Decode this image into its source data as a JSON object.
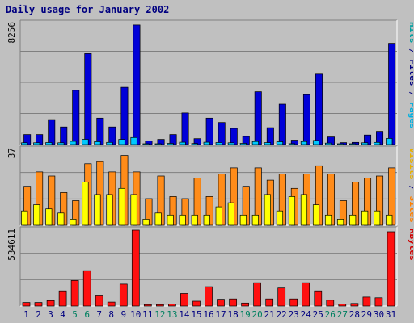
{
  "chart_data": {
    "type": "bar",
    "title": "Daily usage for January 2002",
    "colors": {
      "background": "#c0c0c0",
      "plot_background": "#c0c0c0",
      "title": "#000080",
      "hits": "#00a0a0",
      "hits_bar": "#00a0f0",
      "files": "#000080",
      "files_bar": "#0000d8",
      "pages": "#00b0e0",
      "pages_bar": "#00c8ff",
      "visits": "#e8b000",
      "visits_bar": "#ffff00",
      "sites": "#ff8000",
      "sites_bar": "#ff8c1a",
      "kbytes": "#d00000",
      "kbytes_bar": "#ff1010",
      "weekend_day": "#008060",
      "weekday": "#000080"
    },
    "days": [
      "1",
      "2",
      "3",
      "4",
      "5",
      "6",
      "7",
      "8",
      "9",
      "10",
      "11",
      "12",
      "13",
      "14",
      "15",
      "16",
      "17",
      "18",
      "19",
      "20",
      "21",
      "22",
      "23",
      "24",
      "25",
      "26",
      "27",
      "28",
      "29",
      "30",
      "31"
    ],
    "weekend_days": [
      "5",
      "6",
      "12",
      "13",
      "19",
      "20",
      "26",
      "27"
    ],
    "panels": [
      {
        "name": "files-pages-hits",
        "ymax_label": "8256",
        "ymax": 8256,
        "legend": [
          {
            "text": "Pages",
            "color": "#00b0e0"
          },
          {
            "text": " / ",
            "color": "#000080"
          },
          {
            "text": "Files",
            "color": "#000080"
          },
          {
            "text": " / ",
            "color": "#000080"
          },
          {
            "text": "Hits",
            "color": "#00a0a0"
          }
        ],
        "series": [
          {
            "name": "Files",
            "color": "#0000d8",
            "values": [
              680,
              680,
              1700,
              1200,
              3700,
              6200,
              1800,
              1200,
              3900,
              8150,
              250,
              350,
              680,
              2150,
              400,
              1800,
              1500,
              1100,
              550,
              3600,
              1150,
              2750,
              300,
              3400,
              4800,
              520,
              130,
              150,
              650,
              900,
              6900
            ]
          },
          {
            "name": "Pages",
            "color": "#00c8ff",
            "values": [
              120,
              120,
              140,
              120,
              220,
              360,
              200,
              150,
              350,
              480,
              40,
              50,
              80,
              160,
              70,
              160,
              140,
              120,
              80,
              210,
              130,
              190,
              60,
              210,
              280,
              100,
              30,
              30,
              120,
              150,
              420
            ]
          }
        ]
      },
      {
        "name": "visits-sites",
        "ymax_label": "37",
        "ymax": 37,
        "legend": [
          {
            "text": "Sites",
            "color": "#ff8000"
          },
          {
            "text": " / ",
            "color": "#000080"
          },
          {
            "text": "Visits",
            "color": "#e8b000"
          }
        ],
        "series": [
          {
            "name": "Sites",
            "color": "#ff8c1a",
            "values": [
              19,
              26,
              24,
              16,
              12,
              30,
              31,
              26,
              34,
              26,
              13,
              24,
              14,
              13,
              23,
              14,
              25,
              28,
              19,
              28,
              22,
              25,
              18,
              25,
              29,
              25,
              12,
              21,
              23,
              24,
              28
            ]
          },
          {
            "name": "Visits",
            "color": "#ffff00",
            "values": [
              7,
              10,
              8,
              6,
              3,
              21,
              15,
              15,
              18,
              15,
              3,
              6,
              5,
              5,
              5,
              5,
              9,
              11,
              5,
              5,
              15,
              7,
              14,
              15,
              10,
              5,
              3,
              5,
              7,
              7,
              5
            ]
          }
        ]
      },
      {
        "name": "kbytes",
        "ymax_label": "534611",
        "ymax": 534611,
        "legend": [
          {
            "text": "KBytes",
            "color": "#d00000"
          }
        ],
        "series": [
          {
            "name": "KBytes",
            "color": "#ff1010",
            "values": [
              25000,
              25000,
              38000,
              107000,
              180000,
              249000,
              77000,
              28000,
              154000,
              534611,
              10000,
              10000,
              15000,
              88000,
              34000,
              136000,
              48000,
              50000,
              21000,
              164000,
              50000,
              127000,
              50000,
              164000,
              107000,
              41000,
              15000,
              18000,
              63000,
              58000,
              523000
            ]
          }
        ]
      }
    ]
  }
}
